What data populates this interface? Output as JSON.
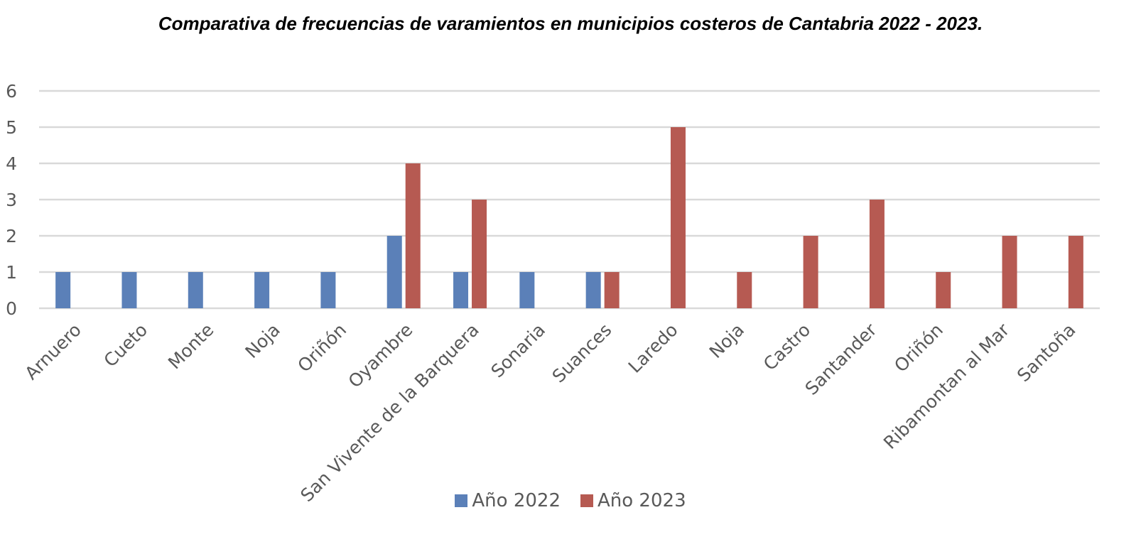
{
  "chart_data": {
    "type": "bar",
    "title": "Comparativa de frecuencias de varamientos en municipios costeros de Cantabria 2022 - 2023.",
    "categories": [
      "Arnuero",
      "Cueto",
      "Monte",
      "Noja",
      "Oriñón",
      "Oyambre",
      "San Vivente de la Barquera",
      "Sonaria",
      "Suances",
      "Laredo",
      "Noja",
      "Castro",
      "Santander",
      "Oriñón",
      "Ribamontan al Mar",
      "Santoña"
    ],
    "series": [
      {
        "name": "Año 2022",
        "color": "#5b80b8",
        "values": [
          1,
          1,
          1,
          1,
          1,
          2,
          1,
          1,
          1,
          0,
          0,
          0,
          0,
          0,
          0,
          0
        ]
      },
      {
        "name": "Año 2023",
        "color": "#b65a52",
        "values": [
          0,
          0,
          0,
          0,
          0,
          4,
          3,
          0,
          1,
          5,
          1,
          2,
          3,
          1,
          2,
          2
        ]
      }
    ],
    "yticks": [
      0,
      1,
      2,
      3,
      4,
      5,
      6
    ],
    "ylim": [
      0,
      6
    ],
    "grid": true,
    "gridColor": "#d9d9d9",
    "legend": "bottom",
    "xlabel": "",
    "ylabel": ""
  }
}
